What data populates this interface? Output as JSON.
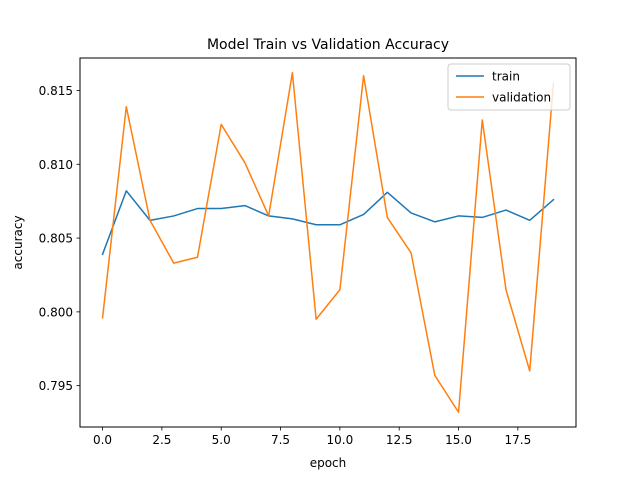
{
  "chart_data": {
    "type": "line",
    "title": "Model Train vs Validation Accuracy",
    "xlabel": "epoch",
    "ylabel": "accuracy",
    "xlim": [
      -0.95,
      19.95
    ],
    "ylim": [
      0.7922,
      0.8172
    ],
    "xticks": [
      0,
      2.5,
      5,
      7.5,
      10,
      12.5,
      15,
      17.5
    ],
    "xtick_labels": [
      "0.0",
      "2.5",
      "5.0",
      "7.5",
      "10.0",
      "12.5",
      "15.0",
      "17.5"
    ],
    "yticks": [
      0.795,
      0.8,
      0.805,
      0.81,
      0.815
    ],
    "ytick_labels": [
      "0.795",
      "0.800",
      "0.805",
      "0.810",
      "0.815"
    ],
    "grid": false,
    "legend_position": "top-right",
    "x": [
      0,
      1,
      2,
      3,
      4,
      5,
      6,
      7,
      8,
      9,
      10,
      11,
      12,
      13,
      14,
      15,
      16,
      17,
      18,
      19
    ],
    "series": [
      {
        "name": "train",
        "color": "#1f77b4",
        "values": [
          0.8039,
          0.8082,
          0.8062,
          0.8065,
          0.807,
          0.807,
          0.8072,
          0.8065,
          0.8063,
          0.8059,
          0.8059,
          0.8066,
          0.8081,
          0.8067,
          0.8061,
          0.8065,
          0.8064,
          0.8069,
          0.8062,
          0.8076
        ]
      },
      {
        "name": "validation",
        "color": "#ff7f0e",
        "values": [
          0.7996,
          0.8139,
          0.8062,
          0.8033,
          0.8037,
          0.8127,
          0.8101,
          0.8065,
          0.8162,
          0.7995,
          0.8015,
          0.816,
          0.8064,
          0.804,
          0.7957,
          0.7932,
          0.813,
          0.8015,
          0.796,
          0.8155
        ]
      }
    ]
  }
}
